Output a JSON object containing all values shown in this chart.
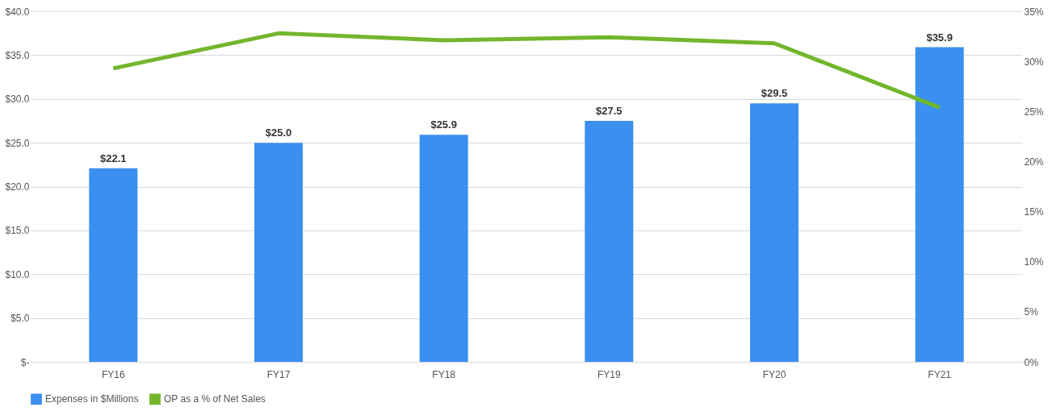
{
  "chart_data": {
    "type": "bar",
    "categories": [
      "FY16",
      "FY17",
      "FY18",
      "FY19",
      "FY20",
      "FY21"
    ],
    "series": [
      {
        "name": "Expenses in $Millions",
        "color": "#3a8ff0",
        "values": [
          22.1,
          25.0,
          25.9,
          27.5,
          29.5,
          35.9
        ],
        "value_labels": [
          "$22.1",
          "$25.0",
          "$25.9",
          "$27.5",
          "$29.5",
          "$35.9"
        ]
      },
      {
        "name": "OP as a % of Net Sales",
        "type": "line",
        "axis": "y2",
        "color": "#72b62c",
        "values": [
          29.3,
          32.8,
          32.1,
          32.4,
          31.8,
          25.4
        ]
      }
    ],
    "ylim": [
      0,
      40
    ],
    "yticks": [
      {
        "value": 0,
        "label": "$-"
      },
      {
        "value": 5,
        "label": "$5.0"
      },
      {
        "value": 10,
        "label": "$10.0"
      },
      {
        "value": 15,
        "label": "$15.0"
      },
      {
        "value": 20,
        "label": "$20.0"
      },
      {
        "value": 25,
        "label": "$25.0"
      },
      {
        "value": 30,
        "label": "$30.0"
      },
      {
        "value": 35,
        "label": "$35.0"
      },
      {
        "value": 40,
        "label": "$40.0"
      }
    ],
    "y2lim": [
      0,
      35
    ],
    "y2ticks": [
      {
        "value": 0,
        "label": "0%"
      },
      {
        "value": 5,
        "label": "5%"
      },
      {
        "value": 10,
        "label": "10%"
      },
      {
        "value": 15,
        "label": "15%"
      },
      {
        "value": 20,
        "label": "20%"
      },
      {
        "value": 25,
        "label": "25%"
      },
      {
        "value": 30,
        "label": "30%"
      },
      {
        "value": 35,
        "label": "35%"
      }
    ],
    "grid": "y",
    "legend": "bottom"
  }
}
